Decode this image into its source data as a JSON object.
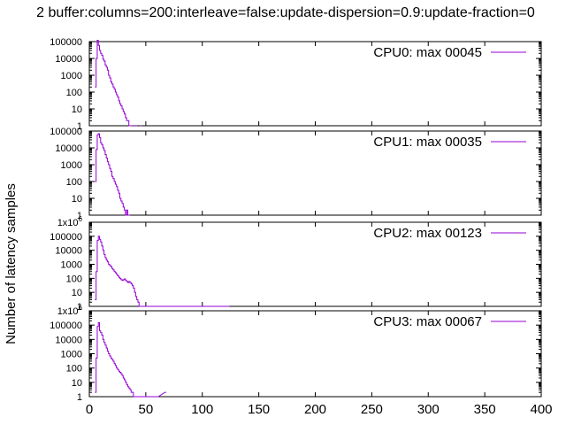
{
  "title": "2 buffer:columns=200:interleave=false:update-dispersion=0.9:update-fraction=0",
  "ylabel": "Number of latency samples",
  "x_ticks": [
    "0",
    "50",
    "100",
    "150",
    "200",
    "250",
    "300",
    "350",
    "400"
  ],
  "series_color": "#9400d3",
  "chart_data": [
    {
      "type": "line",
      "legend": "CPU0: max 00045",
      "yscale": "log",
      "xlim": [
        0,
        400
      ],
      "ylim": [
        1,
        100000
      ],
      "y_ticks": [
        "1",
        "10",
        "100",
        "1000",
        "10000",
        "100000"
      ],
      "x": [
        5,
        6,
        7,
        8,
        9,
        10,
        11,
        12,
        13,
        14,
        15,
        16,
        17,
        18,
        19,
        20,
        21,
        22,
        23,
        24,
        25,
        26,
        27,
        28,
        29,
        30,
        31,
        32,
        33,
        34,
        35,
        36,
        37,
        38,
        39,
        40,
        41,
        42,
        43,
        44,
        45
      ],
      "values": [
        200,
        10000,
        120000,
        60000,
        30000,
        20000,
        15000,
        9000,
        7000,
        4000,
        3000,
        2000,
        1000,
        700,
        400,
        300,
        200,
        150,
        100,
        70,
        50,
        30,
        20,
        15,
        10,
        7,
        5,
        3,
        2,
        2,
        1,
        1,
        1,
        0,
        1,
        0,
        1,
        0,
        0,
        0,
        1
      ]
    },
    {
      "type": "line",
      "legend": "CPU1: max 00035",
      "yscale": "log",
      "xlim": [
        0,
        400
      ],
      "ylim": [
        1,
        100000
      ],
      "y_ticks": [
        "1",
        "10",
        "100",
        "1000",
        "10000",
        "100000"
      ],
      "x": [
        5,
        6,
        7,
        8,
        9,
        10,
        11,
        12,
        13,
        14,
        15,
        16,
        17,
        18,
        19,
        20,
        21,
        22,
        23,
        24,
        25,
        26,
        27,
        28,
        29,
        30,
        31,
        32,
        33,
        34,
        35
      ],
      "values": [
        100,
        8000,
        60000,
        70000,
        40000,
        20000,
        15000,
        10000,
        7000,
        4000,
        2500,
        1500,
        1000,
        600,
        400,
        200,
        150,
        100,
        70,
        50,
        30,
        20,
        10,
        7,
        5,
        3,
        2,
        1,
        2,
        1,
        1
      ]
    },
    {
      "type": "line",
      "legend": "CPU2: max 00123",
      "yscale": "log",
      "xlim": [
        0,
        400
      ],
      "ylim": [
        1,
        1000000
      ],
      "y_ticks": [
        "1",
        "10",
        "100",
        "1000",
        "10000",
        "100000",
        "1x10^6"
      ],
      "x": [
        5,
        6,
        7,
        8,
        9,
        10,
        11,
        12,
        13,
        14,
        15,
        16,
        17,
        18,
        19,
        20,
        21,
        22,
        23,
        24,
        25,
        26,
        27,
        28,
        29,
        30,
        31,
        32,
        33,
        34,
        35,
        36,
        37,
        38,
        39,
        40,
        41,
        42,
        43,
        44,
        45,
        46,
        47,
        48,
        49,
        50,
        55,
        60,
        68,
        123
      ],
      "values": [
        3,
        300,
        50000,
        100000,
        60000,
        40000,
        20000,
        10000,
        5000,
        3000,
        2000,
        1500,
        1000,
        800,
        700,
        500,
        400,
        300,
        250,
        200,
        150,
        120,
        100,
        80,
        70,
        80,
        90,
        70,
        60,
        50,
        60,
        50,
        40,
        30,
        20,
        10,
        5,
        3,
        2,
        1,
        1,
        1,
        1,
        1,
        1,
        1,
        1,
        1,
        1,
        1
      ]
    },
    {
      "type": "line",
      "legend": "CPU3: max 00067",
      "yscale": "log",
      "xlim": [
        0,
        400
      ],
      "ylim": [
        1,
        1000000
      ],
      "y_ticks": [
        "1",
        "10",
        "100",
        "1000",
        "10000",
        "100000",
        "1x10^6"
      ],
      "x": [
        5,
        6,
        7,
        8,
        9,
        10,
        11,
        12,
        13,
        14,
        15,
        16,
        17,
        18,
        19,
        20,
        21,
        22,
        23,
        24,
        25,
        26,
        27,
        28,
        29,
        30,
        31,
        32,
        33,
        34,
        35,
        36,
        37,
        38,
        39,
        40,
        41,
        45,
        50,
        55,
        60,
        67
      ],
      "values": [
        2,
        500,
        80000,
        150000,
        40000,
        30000,
        20000,
        10000,
        6000,
        4000,
        2500,
        1500,
        1000,
        700,
        500,
        400,
        300,
        200,
        150,
        100,
        80,
        60,
        50,
        40,
        30,
        20,
        15,
        10,
        7,
        5,
        4,
        3,
        2,
        2,
        1,
        1,
        1,
        1,
        1,
        1,
        1,
        2
      ]
    }
  ]
}
